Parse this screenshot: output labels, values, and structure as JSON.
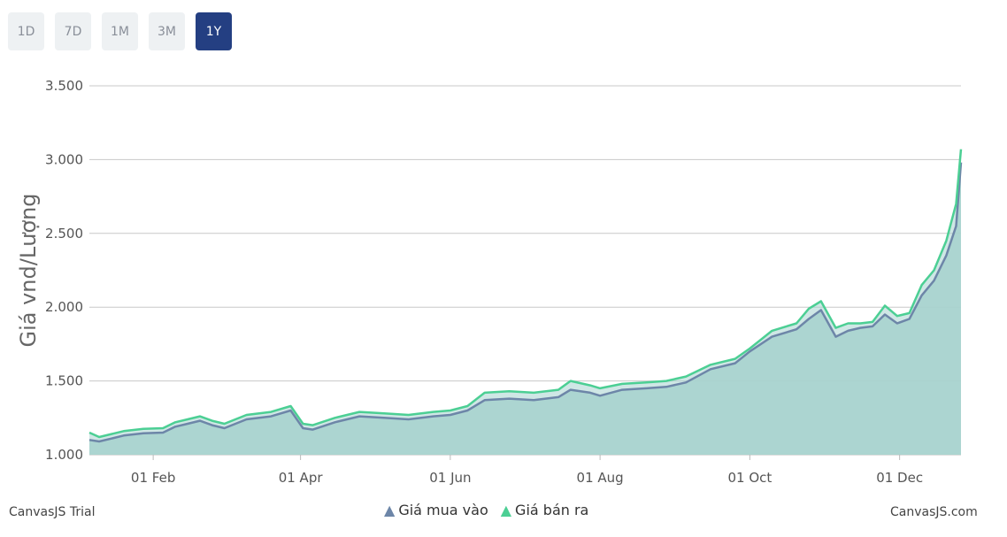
{
  "range_buttons": [
    {
      "label": "1D"
    },
    {
      "label": "7D"
    },
    {
      "label": "1M"
    },
    {
      "label": "3M"
    },
    {
      "label": "1Y",
      "active": true
    }
  ],
  "footer": {
    "trial": "CanvasJS Trial",
    "brand": "CanvasJS.com"
  },
  "colors": {
    "buy": "#6d86a8",
    "sell": "#4ccf94",
    "fill": "#a8d3cf",
    "grid": "#c8c8c8",
    "active_button": "#243f82"
  },
  "chart_data": {
    "type": "area",
    "ylabel": "Giá vnd/Lượng",
    "ylim": [
      1000,
      3500
    ],
    "yticks": [
      {
        "value": 1000,
        "label": "1.000"
      },
      {
        "value": 1500,
        "label": "1.500"
      },
      {
        "value": 2000,
        "label": "2.000"
      },
      {
        "value": 2500,
        "label": "2.500"
      },
      {
        "value": 3000,
        "label": "3.000"
      },
      {
        "value": 3500,
        "label": "3.500"
      }
    ],
    "xlim": [
      "2024-01-06",
      "2024-12-26"
    ],
    "xticks": [
      {
        "date": "2024-02-01",
        "label": "01 Feb"
      },
      {
        "date": "2024-04-01",
        "label": "01 Apr"
      },
      {
        "date": "2024-06-01",
        "label": "01 Jun"
      },
      {
        "date": "2024-08-01",
        "label": "01 Aug"
      },
      {
        "date": "2024-10-01",
        "label": "01 Oct"
      },
      {
        "date": "2024-12-01",
        "label": "01 Dec"
      }
    ],
    "grid": true,
    "legend_position": "bottom",
    "x": [
      "2024-01-06",
      "2024-01-10",
      "2024-01-15",
      "2024-01-20",
      "2024-01-28",
      "2024-02-05",
      "2024-02-10",
      "2024-02-15",
      "2024-02-20",
      "2024-02-25",
      "2024-03-01",
      "2024-03-10",
      "2024-03-20",
      "2024-03-28",
      "2024-04-02",
      "2024-04-06",
      "2024-04-15",
      "2024-04-25",
      "2024-05-05",
      "2024-05-15",
      "2024-05-25",
      "2024-06-01",
      "2024-06-08",
      "2024-06-15",
      "2024-06-25",
      "2024-07-05",
      "2024-07-15",
      "2024-07-20",
      "2024-07-28",
      "2024-08-01",
      "2024-08-10",
      "2024-08-20",
      "2024-08-28",
      "2024-09-05",
      "2024-09-15",
      "2024-09-25",
      "2024-10-01",
      "2024-10-10",
      "2024-10-20",
      "2024-10-25",
      "2024-10-30",
      "2024-11-05",
      "2024-11-10",
      "2024-11-15",
      "2024-11-20",
      "2024-11-25",
      "2024-11-30",
      "2024-12-05",
      "2024-12-10",
      "2024-12-15",
      "2024-12-20",
      "2024-12-24",
      "2024-12-26"
    ],
    "series": [
      {
        "name": "Giá mua vào",
        "values": [
          1100,
          1090,
          1110,
          1130,
          1145,
          1150,
          1190,
          1210,
          1230,
          1200,
          1180,
          1240,
          1260,
          1300,
          1180,
          1170,
          1220,
          1260,
          1250,
          1240,
          1260,
          1270,
          1300,
          1370,
          1380,
          1370,
          1390,
          1440,
          1420,
          1400,
          1440,
          1450,
          1460,
          1490,
          1580,
          1620,
          1700,
          1800,
          1850,
          1920,
          1980,
          1800,
          1840,
          1860,
          1870,
          1950,
          1890,
          1920,
          2080,
          2180,
          2350,
          2550,
          2980
        ]
      },
      {
        "name": "Giá bán ra",
        "values": [
          1150,
          1120,
          1140,
          1160,
          1175,
          1180,
          1220,
          1240,
          1260,
          1230,
          1210,
          1270,
          1290,
          1330,
          1210,
          1200,
          1250,
          1290,
          1280,
          1270,
          1290,
          1300,
          1330,
          1420,
          1430,
          1420,
          1440,
          1500,
          1470,
          1450,
          1480,
          1490,
          1500,
          1530,
          1610,
          1650,
          1720,
          1840,
          1890,
          1990,
          2040,
          1860,
          1890,
          1890,
          1900,
          2010,
          1940,
          1960,
          2150,
          2250,
          2450,
          2700,
          3070
        ]
      }
    ]
  }
}
